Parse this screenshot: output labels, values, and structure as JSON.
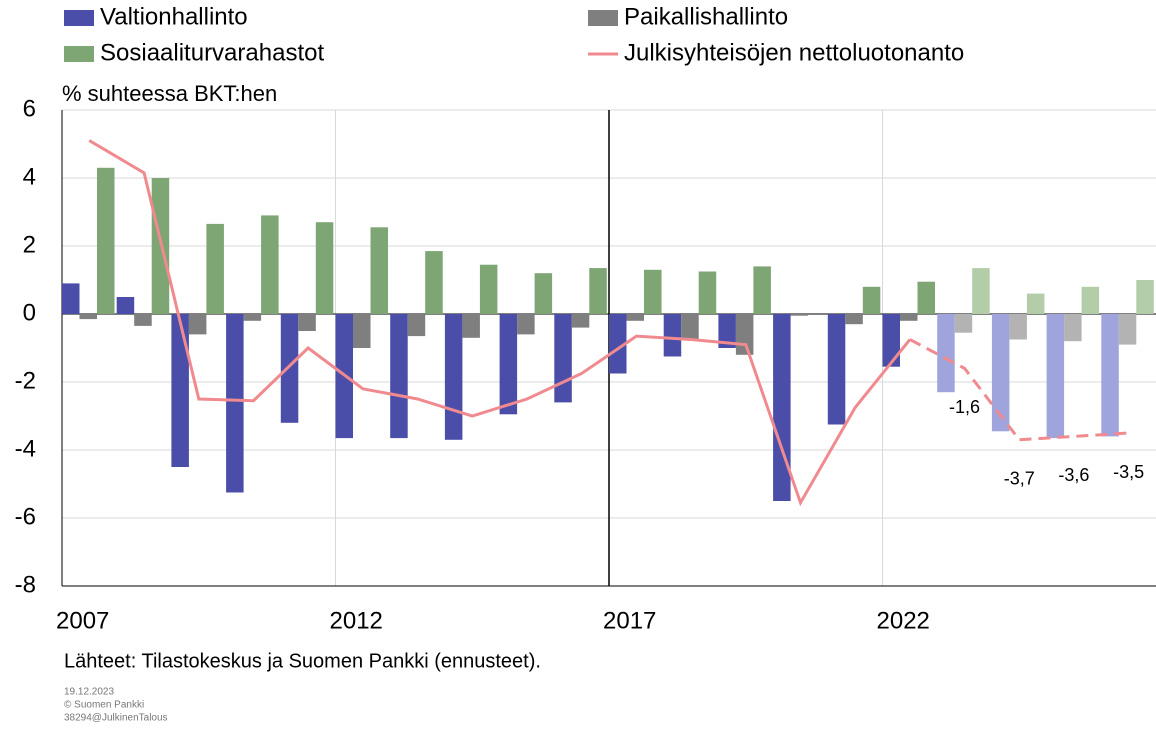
{
  "chart_data": {
    "type": "bar",
    "categories": [
      "2007",
      null,
      null,
      null,
      null,
      "2012",
      null,
      null,
      null,
      null,
      "2017",
      null,
      null,
      null,
      null,
      "2022",
      null,
      null,
      null,
      null
    ],
    "y_label": "% suhteessa BKT:hen",
    "series": [
      {
        "name": "Valtionhallinto",
        "color": "#4a4ea8",
        "forecast_color": "#a0a4dc",
        "type": "bar",
        "values": [
          0.9,
          0.5,
          -4.5,
          -5.25,
          -3.2,
          -3.65,
          -3.65,
          -3.7,
          -2.95,
          -2.6,
          -1.75,
          -1.25,
          -1.0,
          -5.5,
          -3.25,
          -1.55,
          -2.3,
          -3.45,
          -3.65,
          -3.6
        ]
      },
      {
        "name": "Paikallishallinto",
        "color": "#7f7f7f",
        "forecast_color": "#b3b3b3",
        "type": "bar",
        "values": [
          -0.15,
          -0.35,
          -0.6,
          -0.2,
          -0.5,
          -1.0,
          -0.65,
          -0.7,
          -0.6,
          -0.4,
          -0.2,
          -0.75,
          -1.2,
          -0.05,
          -0.3,
          -0.2,
          -0.55,
          -0.75,
          -0.8,
          -0.9
        ]
      },
      {
        "name": "Sosiaaliturvarahastot",
        "color": "#7ea574",
        "forecast_color": "#b2cda8",
        "type": "bar",
        "values": [
          4.3,
          4.0,
          2.65,
          2.9,
          2.7,
          2.55,
          1.85,
          1.45,
          1.2,
          1.35,
          1.3,
          1.25,
          1.4,
          0.0,
          0.8,
          0.95,
          1.35,
          0.6,
          0.8,
          1.0
        ]
      },
      {
        "name": "Julkisyhteisöjen nettoluotonanto",
        "color": "#f08a8f",
        "type": "line",
        "values": [
          5.1,
          4.15,
          -2.5,
          -2.55,
          -1.0,
          -2.2,
          -2.5,
          -3.0,
          -2.5,
          -1.75,
          -0.65,
          -0.75,
          -0.9,
          -5.55,
          -2.75,
          -0.75,
          -1.6,
          -3.7,
          -3.6,
          -3.5
        ],
        "value_labels": [
          null,
          null,
          null,
          null,
          null,
          null,
          null,
          null,
          null,
          null,
          null,
          null,
          null,
          null,
          null,
          null,
          "-1,6",
          "-3,7",
          "-3,6",
          "-3,5"
        ]
      }
    ],
    "forecast_index": 16,
    "divider_index": 10,
    "ylim": [
      -8,
      6
    ],
    "yticks": [
      -8,
      -6,
      -4,
      -2,
      0,
      2,
      4,
      6
    ],
    "grid": true,
    "source": "Lähteet: Tilastokeskus ja Suomen Pankki (ennusteet).",
    "footnotes": [
      "19.12.2023",
      "© Suomen Pankki",
      "38294@JulkinenTalous"
    ]
  }
}
